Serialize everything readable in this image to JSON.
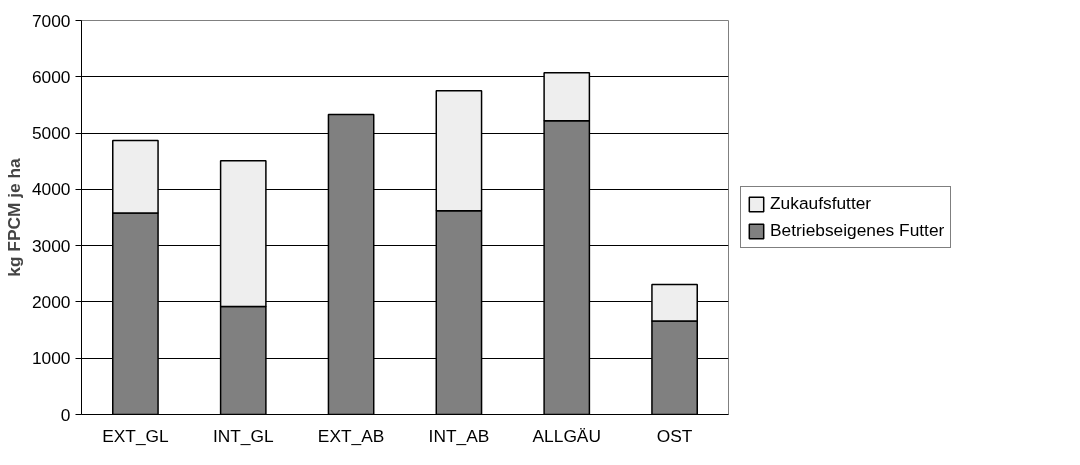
{
  "chart_data": {
    "type": "bar",
    "stacked": true,
    "ylabel": "kg FPCM je ha",
    "categories": [
      "EXT_GL",
      "INT_GL",
      "EXT_AB",
      "INT_AB",
      "ALLGÄU",
      "OST"
    ],
    "series": [
      {
        "name": "Betriebseigenes Futter",
        "color": "#808080",
        "values": [
          3580,
          1920,
          5330,
          3620,
          5220,
          1660
        ]
      },
      {
        "name": "Zukaufsfutter",
        "color": "#eeeeee",
        "values": [
          1290,
          2590,
          0,
          2130,
          850,
          650
        ]
      }
    ],
    "ylim": [
      0,
      7000
    ],
    "yticks": [
      0,
      1000,
      2000,
      3000,
      4000,
      5000,
      6000,
      7000
    ],
    "grid": "y",
    "legend": "right"
  }
}
